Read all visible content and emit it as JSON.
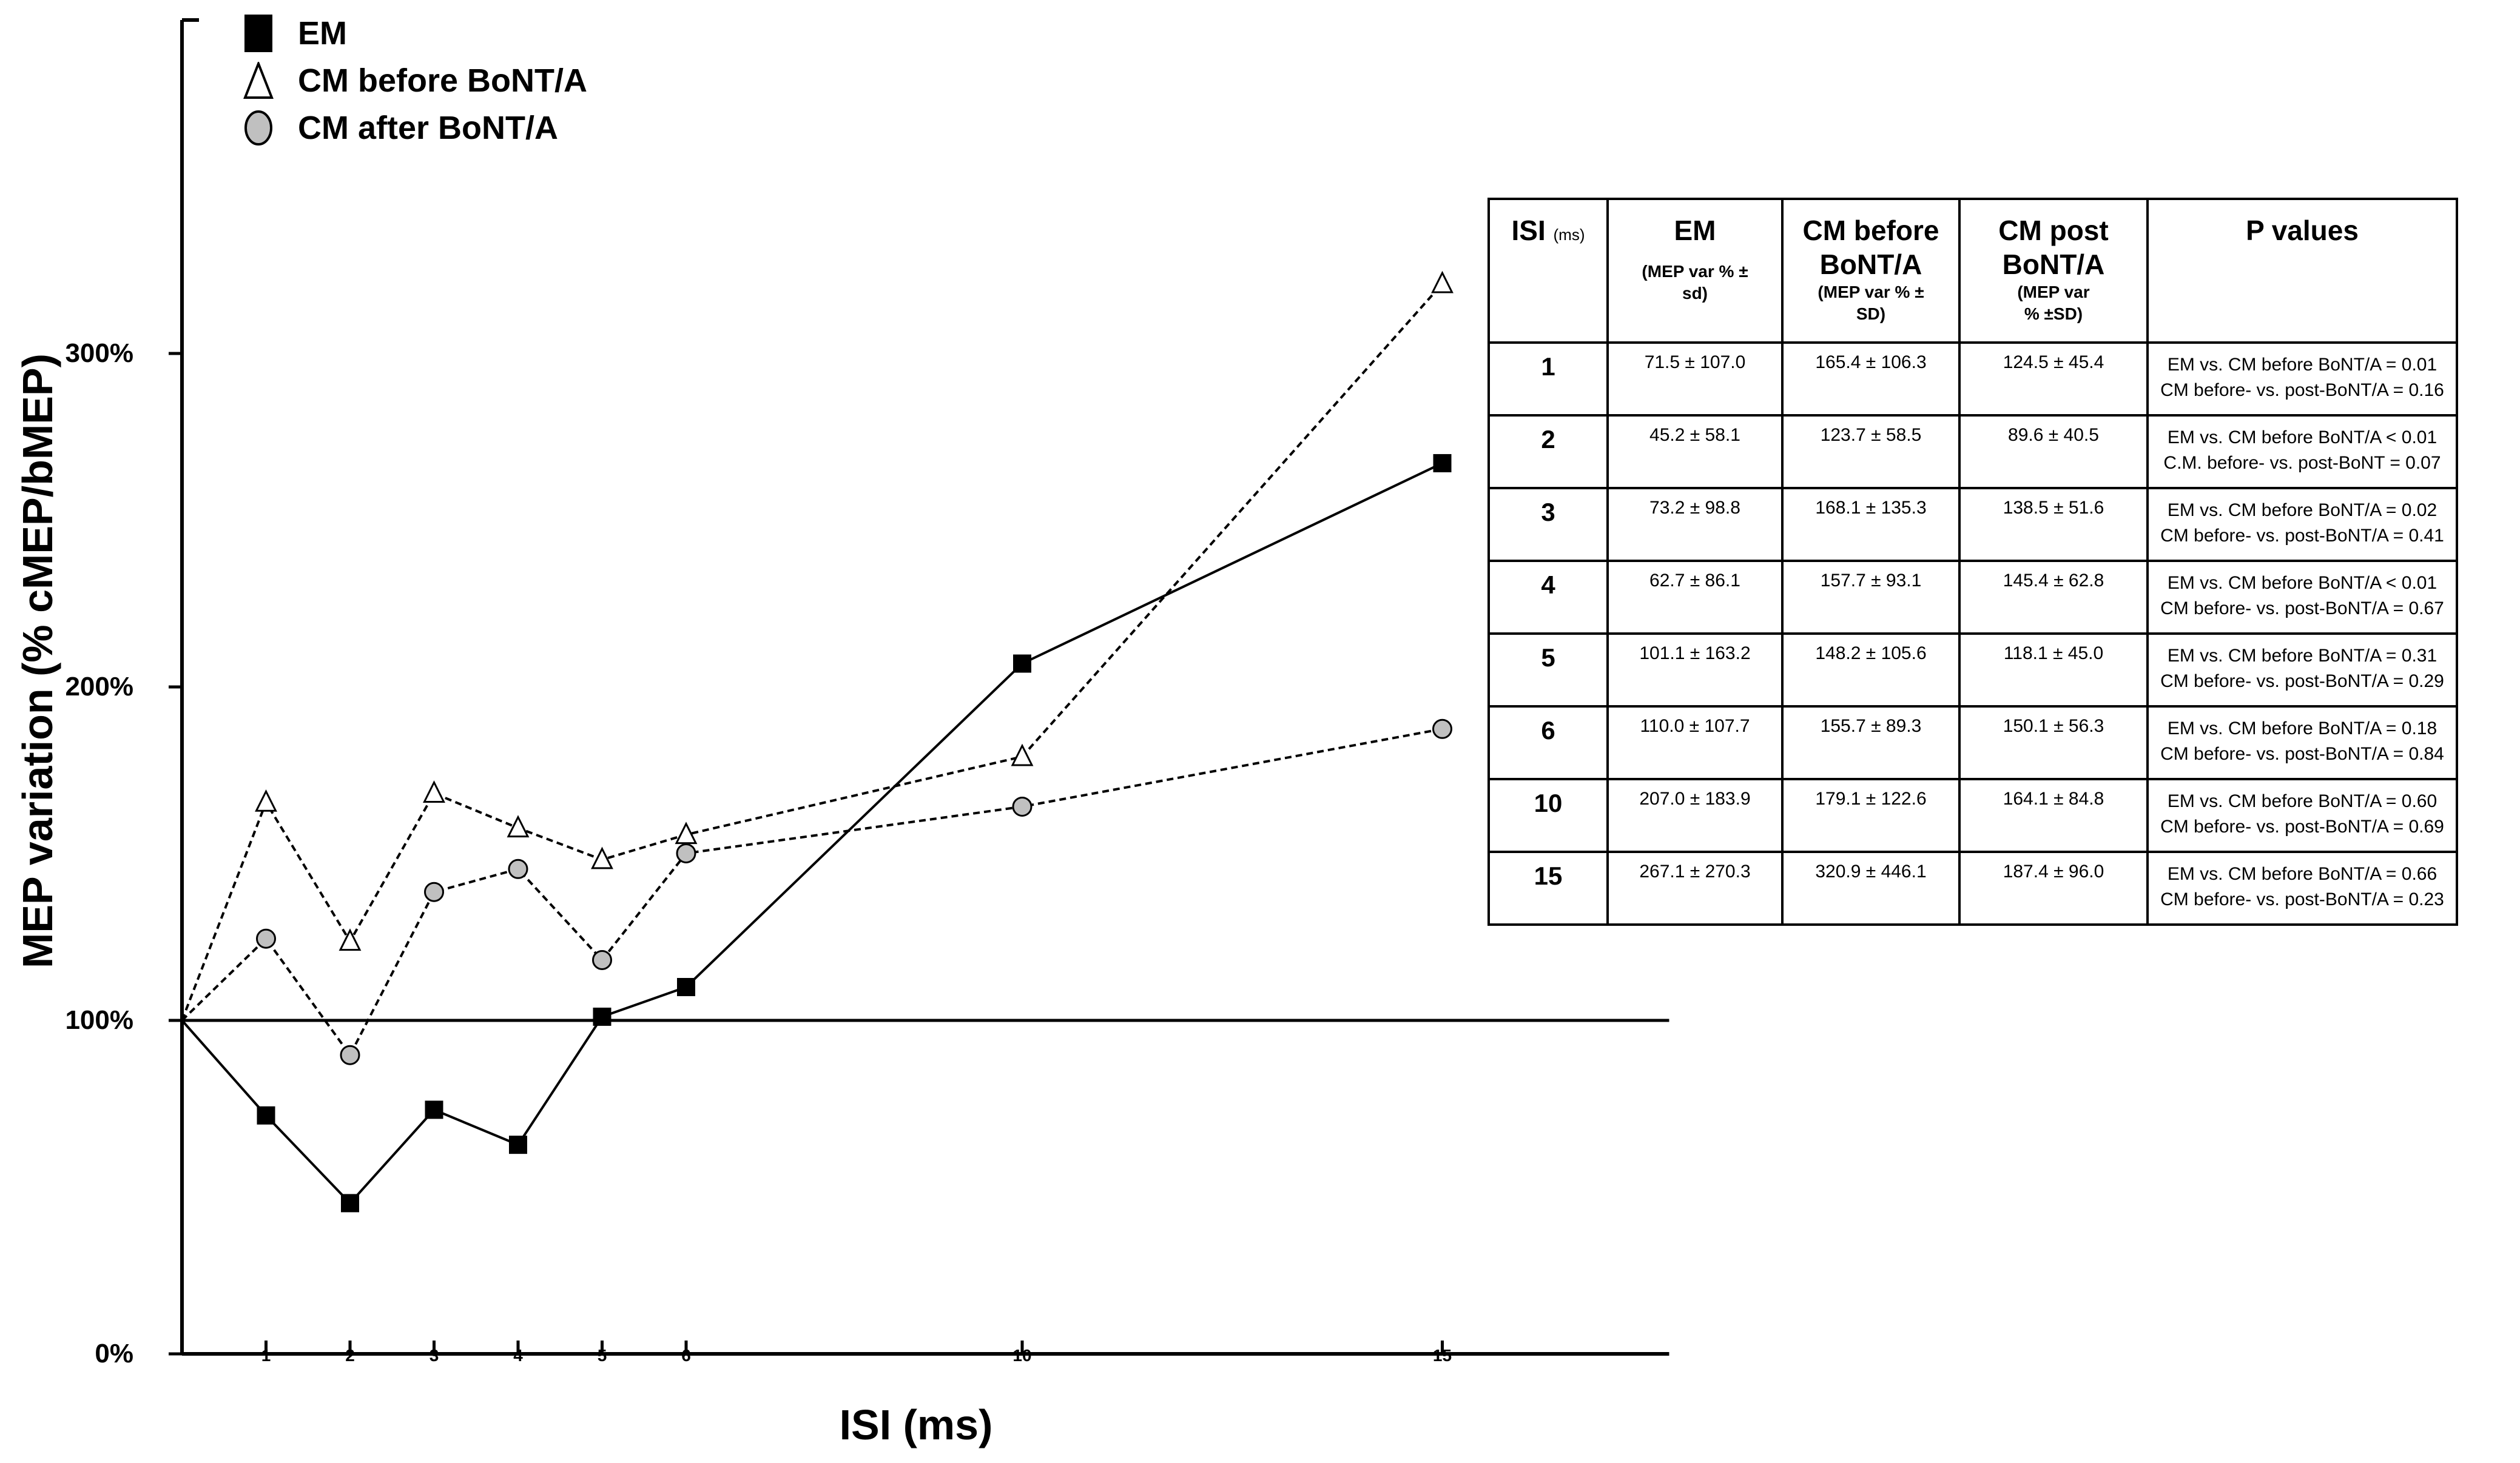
{
  "chart_data": {
    "type": "line",
    "xlabel": "ISI (ms)",
    "ylabel": "MEP variation (% cMEP/bMEP)",
    "x": [
      0,
      1,
      2,
      3,
      4,
      5,
      6,
      10,
      15
    ],
    "x_ticks": [
      "1",
      "2",
      "3",
      "4",
      "5",
      "6",
      "10",
      "15"
    ],
    "y_ticks": [
      "0%",
      "100%",
      "200%",
      "300%"
    ],
    "xlim": [
      0,
      17.7
    ],
    "ylim": [
      0,
      400
    ],
    "reference_line_y": 100,
    "series": [
      {
        "name": "EM",
        "marker": "square",
        "line_style": "solid",
        "values": [
          100,
          71.5,
          45.2,
          73.2,
          62.7,
          101.1,
          110.0,
          207.0,
          267.1
        ]
      },
      {
        "name": "CM before BoNT/A",
        "marker": "triangle",
        "line_style": "dashed",
        "values": [
          100,
          165.4,
          123.7,
          168.1,
          157.7,
          148.2,
          155.7,
          179.1,
          320.9
        ]
      },
      {
        "name": "CM after BoNT/A",
        "marker": "circle",
        "line_style": "dashed",
        "values": [
          100,
          124.5,
          89.6,
          138.5,
          145.4,
          118.1,
          150.1,
          164.1,
          187.4
        ]
      }
    ],
    "colors": {
      "line": "#000000",
      "circle_fill": "#c0c0c0",
      "triangle_fill": "#ffffff"
    }
  },
  "table": {
    "headers": [
      {
        "main": "ISI",
        "small": "(ms)",
        "sub": ""
      },
      {
        "main": "EM",
        "small": "",
        "sub": "(MEP var % ± sd)"
      },
      {
        "main": "CM before BoNT/A",
        "small": "",
        "sub": "(MEP var % ± SD)"
      },
      {
        "main": "CM post BoNT/A",
        "small": "",
        "sub": "(MEP var % ±SD)"
      },
      {
        "main": "P values",
        "small": "",
        "sub": ""
      }
    ],
    "rows": [
      {
        "isi": "1",
        "em": "71.5 ± 107.0",
        "cm_before": "165.4 ± 106.3",
        "cm_post": "124.5 ± 45.4",
        "p1": "EM vs. CM before BoNT/A = 0.01",
        "p2": "CM before- vs. post-BoNT/A = 0.16"
      },
      {
        "isi": "2",
        "em": "45.2 ± 58.1",
        "cm_before": "123.7 ± 58.5",
        "cm_post": "89.6 ± 40.5",
        "p1": "EM vs. CM before BoNT/A < 0.01",
        "p2": "C.M. before- vs. post-BoNT = 0.07"
      },
      {
        "isi": "3",
        "em": "73.2 ± 98.8",
        "cm_before": "168.1 ± 135.3",
        "cm_post": "138.5 ± 51.6",
        "p1": "EM vs. CM before BoNT/A = 0.02",
        "p2": "CM before- vs. post-BoNT/A = 0.41"
      },
      {
        "isi": "4",
        "em": "62.7 ± 86.1",
        "cm_before": "157.7 ± 93.1",
        "cm_post": "145.4 ± 62.8",
        "p1": "EM vs. CM before BoNT/A < 0.01",
        "p2": "CM before- vs. post-BoNT/A = 0.67"
      },
      {
        "isi": "5",
        "em": "101.1 ± 163.2",
        "cm_before": "148.2 ± 105.6",
        "cm_post": "118.1 ± 45.0",
        "p1": "EM vs. CM before BoNT/A = 0.31",
        "p2": "CM before- vs. post-BoNT/A = 0.29"
      },
      {
        "isi": "6",
        "em": "110.0 ± 107.7",
        "cm_before": "155.7 ± 89.3",
        "cm_post": "150.1 ± 56.3",
        "p1": "EM vs. CM before BoNT/A = 0.18",
        "p2": "CM before- vs. post-BoNT/A = 0.84"
      },
      {
        "isi": "10",
        "em": "207.0 ± 183.9",
        "cm_before": "179.1 ± 122.6",
        "cm_post": "164.1 ± 84.8",
        "p1": "EM vs. CM before BoNT/A = 0.60",
        "p2": "CM before- vs. post-BoNT/A = 0.69"
      },
      {
        "isi": "15",
        "em": "267.1 ± 270.3",
        "cm_before": "320.9 ± 446.1",
        "cm_post": "187.4 ± 96.0",
        "p1": "EM vs. CM before BoNT/A = 0.66",
        "p2": "CM before- vs. post-BoNT/A = 0.23"
      }
    ]
  }
}
